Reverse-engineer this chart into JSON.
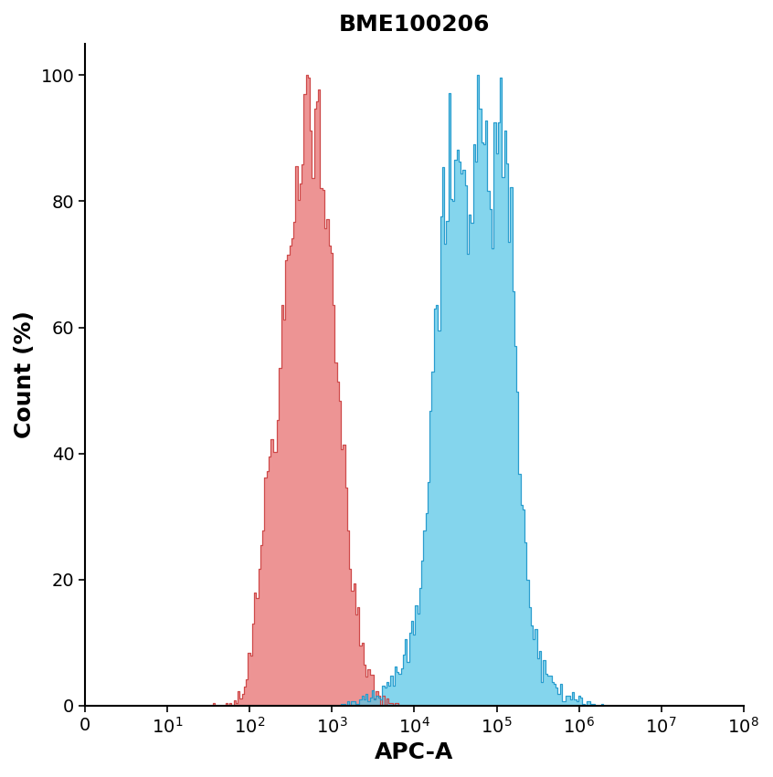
{
  "title": "BME100206",
  "xlabel": "APC-A",
  "ylabel": "Count (%)",
  "ylim": [
    0,
    105
  ],
  "yticks": [
    0,
    20,
    40,
    60,
    80,
    100
  ],
  "red_fill_color": "#E87070",
  "red_edge_color": "#CC4444",
  "blue_fill_color": "#5BC8E8",
  "blue_edge_color": "#2299CC",
  "red_alpha": 0.75,
  "blue_alpha": 0.75,
  "background_color": "#ffffff",
  "title_fontsize": 18,
  "label_fontsize": 18,
  "tick_fontsize": 14
}
